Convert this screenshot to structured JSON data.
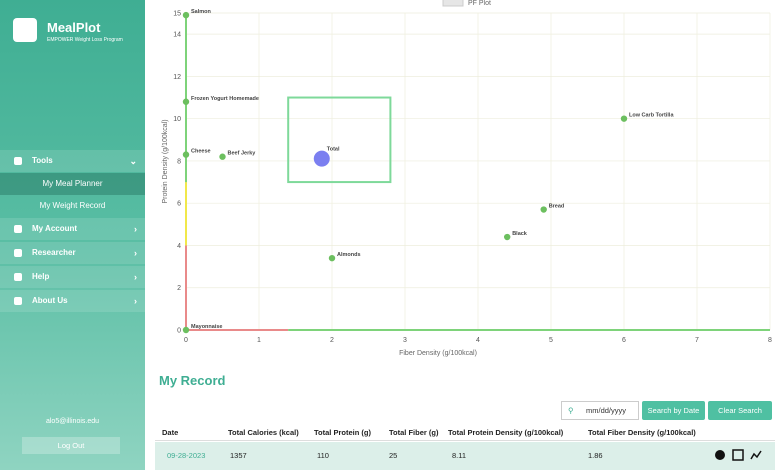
{
  "sidebar": {
    "app_name": "MealPlot",
    "subtitle": "EMPOWER Weight Loss Program",
    "menu": [
      "Tools",
      "My Meal Planner",
      "My Weight Record",
      "My Account",
      "Researcher",
      "Help",
      "About Us"
    ],
    "email": "alo5@illinois.edu",
    "logout": "Log Out"
  },
  "chart": {
    "type": "scatter",
    "legend": "PF Plot",
    "x_label": "Fiber Density (g/100kcal)",
    "y_label": "Protein Density (g/100kcal)",
    "xlim": [
      0,
      8
    ],
    "xticks": [
      0,
      1,
      2,
      3,
      4,
      5,
      6,
      7,
      8
    ],
    "ylim": [
      0,
      15
    ],
    "yticks": [
      0,
      2,
      4,
      6,
      8,
      10,
      12,
      14,
      15
    ],
    "color": "#6cbf5f",
    "points": [
      {
        "label": "Salmon",
        "x": 0,
        "y": 14.9
      },
      {
        "label": "Frozen Yogurt Homemade",
        "x": 0,
        "y": 10.8
      },
      {
        "label": "Low Carb Tortilla",
        "x": 6.0,
        "y": 10.0
      },
      {
        "label": "Cheese",
        "x": 0,
        "y": 8.3
      },
      {
        "label": "Beef Jerky",
        "x": 0.5,
        "y": 8.2
      },
      {
        "label": "Bread",
        "x": 4.9,
        "y": 5.7
      },
      {
        "label": "Black",
        "x": 4.4,
        "y": 4.4
      },
      {
        "label": "Almonds",
        "x": 2.0,
        "y": 3.4
      },
      {
        "label": "Mayonnaise",
        "x": 0,
        "y": 0
      }
    ],
    "total": {
      "label": "Total",
      "x": 1.86,
      "y": 8.11,
      "color": "#7b7ff0"
    },
    "target_box": {
      "x": [
        1.4,
        2.8
      ],
      "y": [
        7,
        11
      ],
      "color": "#7ed99a"
    },
    "y_zones": [
      {
        "from": 0,
        "to": 4,
        "color": "#e98a8a"
      },
      {
        "from": 4,
        "to": 7,
        "color": "#f1e84a"
      },
      {
        "from": 7,
        "to": 15,
        "color": "#7ed37a"
      }
    ],
    "x_zones": [
      {
        "from": 0,
        "to": 1.4,
        "color": "#e98a8a"
      },
      {
        "from": 1.4,
        "to": 8,
        "color": "#7ed37a"
      }
    ]
  },
  "record": {
    "title": "My Record",
    "date_placeholder": "mm/dd/yyyy",
    "search_button": "Search by Date",
    "clear_button": "Clear Search",
    "headers": [
      "Date",
      "Total Calories (kcal)",
      "Total Protein (g)",
      "Total Fiber (g)",
      "Total Protein Density (g/100kcal)",
      "Total Fiber Density (g/100kcal)"
    ],
    "rows": [
      [
        "09-28-2023",
        "1357",
        "110",
        "25",
        "8.11",
        "1.86"
      ]
    ]
  }
}
